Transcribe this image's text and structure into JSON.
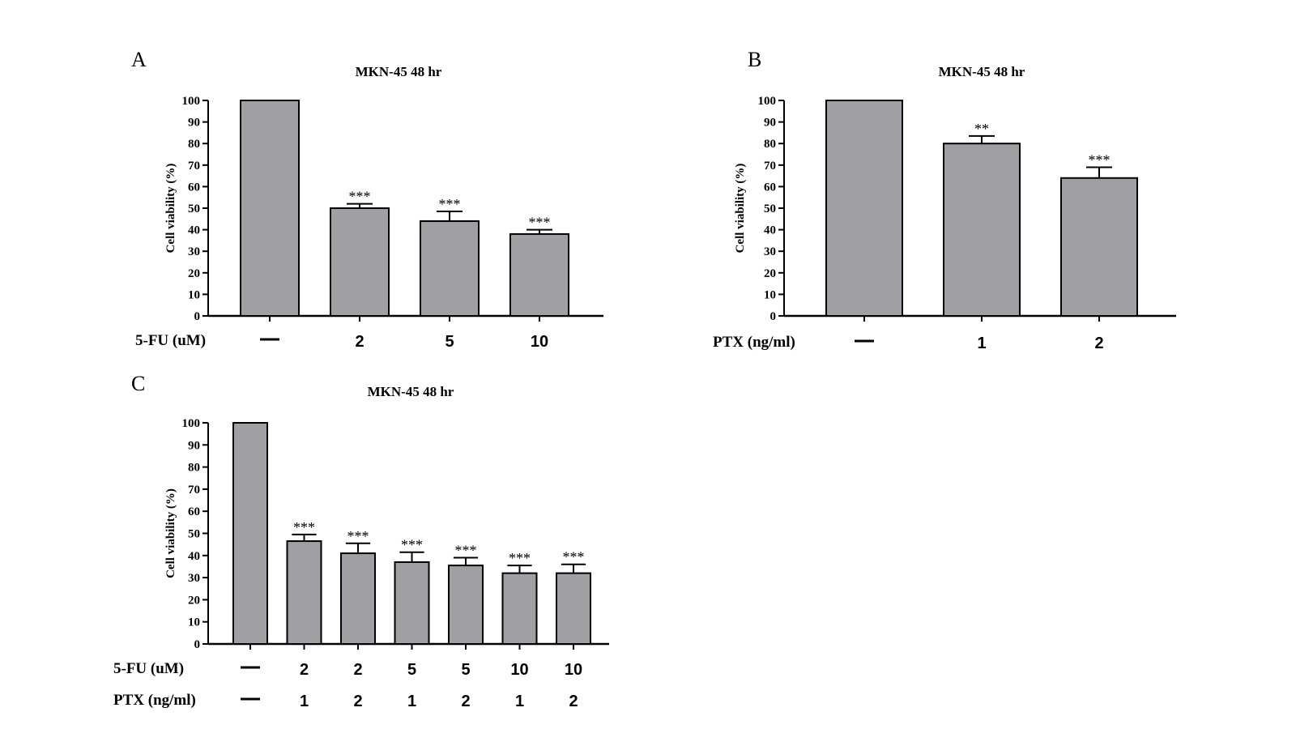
{
  "chart_data": [
    {
      "panel": "A",
      "type": "bar",
      "title": "MKN-45 48 hr",
      "ylabel": "Cell viability (%)",
      "ylim": [
        0,
        100
      ],
      "yticks": [
        0,
        10,
        20,
        30,
        40,
        50,
        60,
        70,
        80,
        90,
        100
      ],
      "conditions": [
        {
          "label": "5-FU (uM)",
          "values": [
            "—",
            "2",
            "5",
            "10"
          ]
        }
      ],
      "values": [
        100,
        50,
        44,
        38
      ],
      "errors": [
        0,
        2,
        4.5,
        2
      ],
      "significance": [
        "",
        "***",
        "***",
        "***"
      ],
      "bar_color": "#a0a0a4"
    },
    {
      "panel": "B",
      "type": "bar",
      "title": "MKN-45 48 hr",
      "ylabel": "Cell viability (%)",
      "ylim": [
        0,
        100
      ],
      "yticks": [
        0,
        10,
        20,
        30,
        40,
        50,
        60,
        70,
        80,
        90,
        100
      ],
      "conditions": [
        {
          "label": "PTX (ng/ml)",
          "values": [
            "—",
            "1",
            "2"
          ]
        }
      ],
      "values": [
        100,
        80,
        64
      ],
      "errors": [
        0,
        3.5,
        5
      ],
      "significance": [
        "",
        "**",
        "***"
      ],
      "bar_color": "#a0a0a4"
    },
    {
      "panel": "C",
      "type": "bar",
      "title": "MKN-45 48 hr",
      "ylabel": "Cell viability (%)",
      "ylim": [
        0,
        100
      ],
      "yticks": [
        0,
        10,
        20,
        30,
        40,
        50,
        60,
        70,
        80,
        90,
        100
      ],
      "conditions": [
        {
          "label": "5-FU (uM)",
          "values": [
            "—",
            "2",
            "2",
            "5",
            "5",
            "10",
            "10"
          ]
        },
        {
          "label": "PTX (ng/ml)",
          "values": [
            "—",
            "1",
            "2",
            "1",
            "2",
            "1",
            "2"
          ]
        }
      ],
      "values": [
        100,
        46.5,
        41,
        37,
        35.5,
        32,
        32
      ],
      "errors": [
        0,
        3,
        4.5,
        4.5,
        3.5,
        3.5,
        4
      ],
      "significance": [
        "",
        "***",
        "***",
        "***",
        "***",
        "***",
        "***"
      ],
      "bar_color": "#a0a0a4"
    }
  ]
}
